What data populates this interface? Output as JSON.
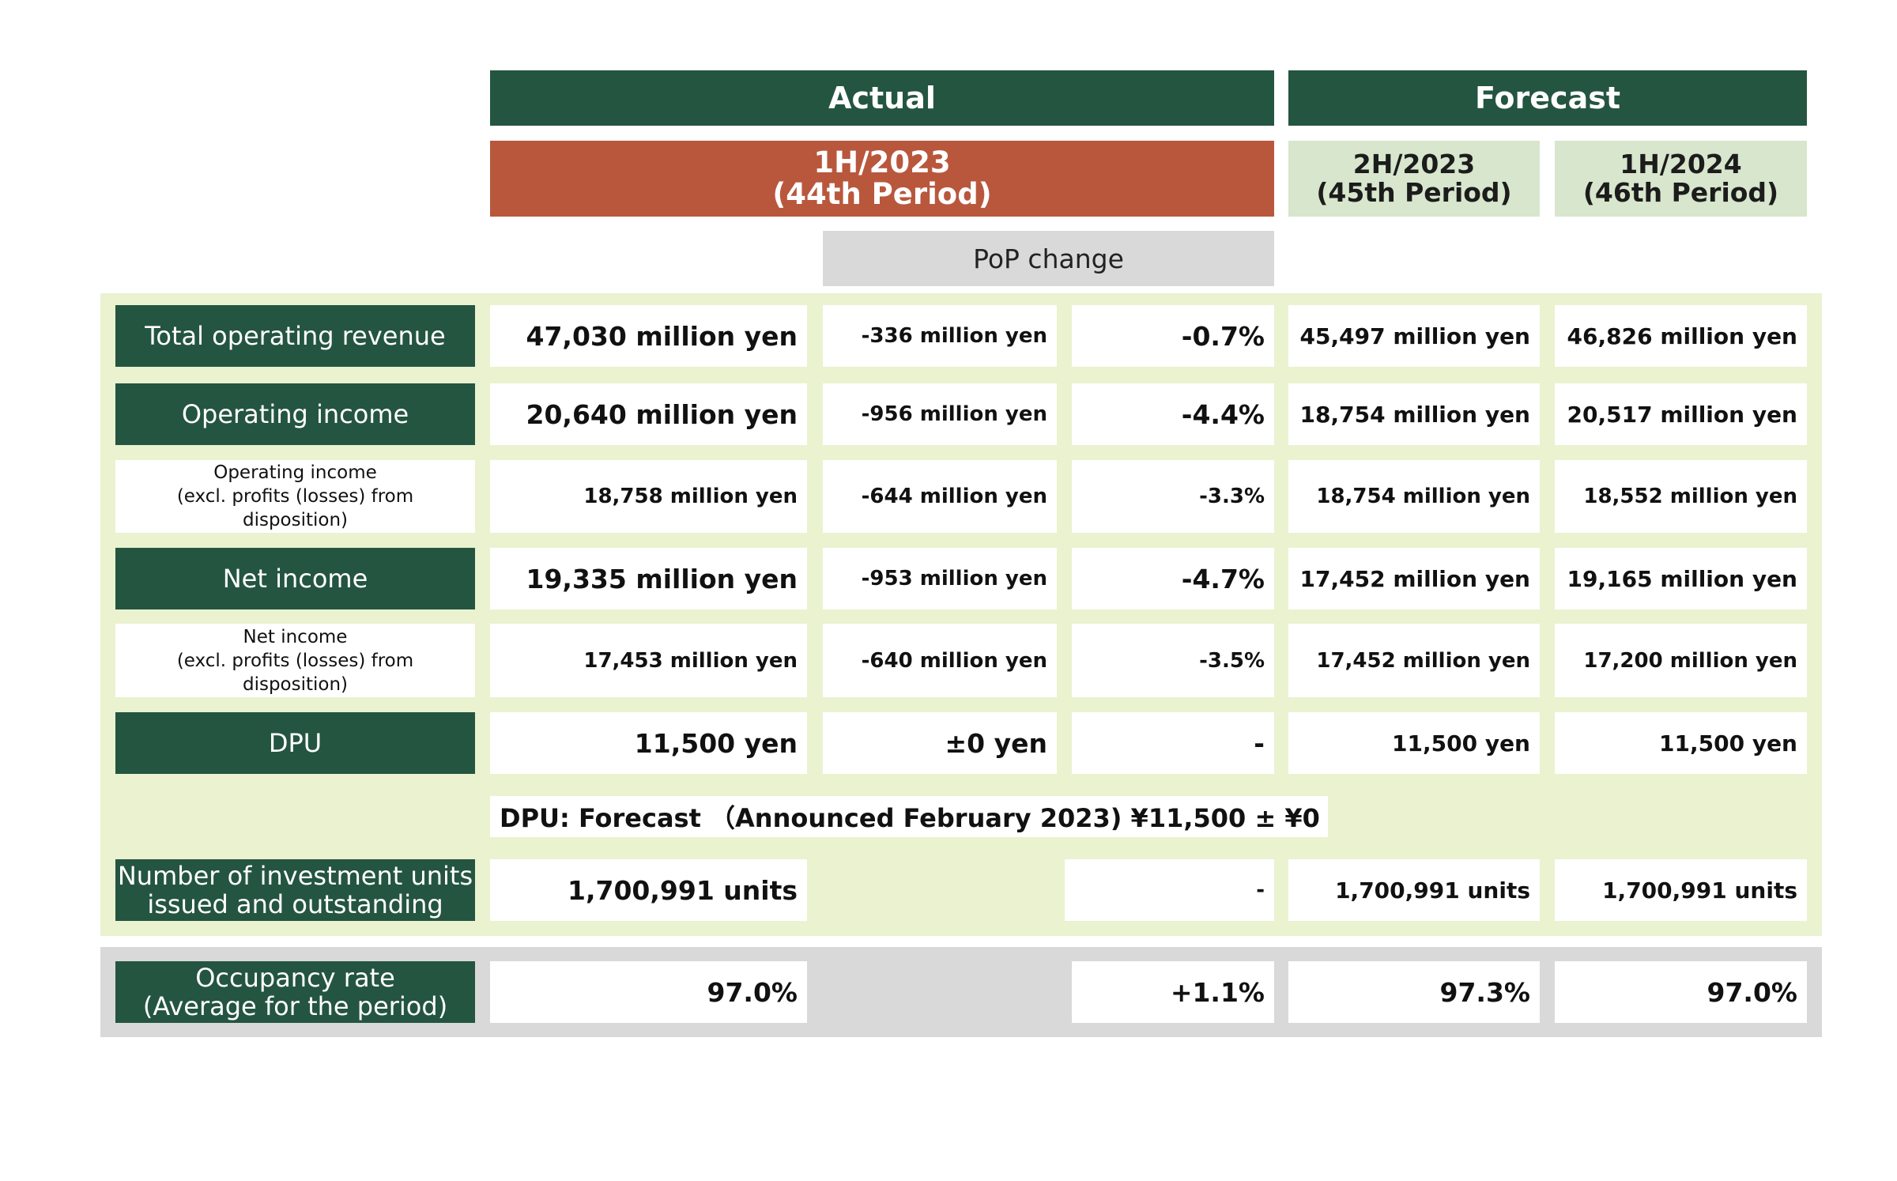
{
  "header": {
    "actual": "Actual",
    "forecast": "Forecast",
    "period_actual": [
      "1H/2023",
      "(44th Period)"
    ],
    "period_f1": [
      "2H/2023",
      "(45th Period)"
    ],
    "period_f2": [
      "1H/2024",
      "(46th Period)"
    ],
    "pop_change": "PoP change"
  },
  "rows": {
    "total_operating_revenue": {
      "label": "Total operating revenue",
      "actual": "47,030 million yen",
      "change": "-336 million yen",
      "pct": "-0.7%",
      "f1": "45,497 million yen",
      "f2": "46,826 million yen"
    },
    "operating_income": {
      "label": "Operating income",
      "actual": "20,640 million yen",
      "change": "-956 million yen",
      "pct": "-4.4%",
      "f1": "18,754 million yen",
      "f2": "20,517 million yen"
    },
    "operating_income_excl": {
      "label": [
        "Operating income",
        "(excl. profits (losses) from",
        "disposition)"
      ],
      "actual": "18,758 million yen",
      "change": "-644 million yen",
      "pct": "-3.3%",
      "f1": "18,754 million yen",
      "f2": "18,552 million yen"
    },
    "net_income": {
      "label": "Net income",
      "actual": "19,335 million yen",
      "change": "-953 million yen",
      "pct": "-4.7%",
      "f1": "17,452 million yen",
      "f2": "19,165 million yen"
    },
    "net_income_excl": {
      "label": [
        "Net income",
        "(excl. profits (losses) from",
        "disposition)"
      ],
      "actual": "17,453 million yen",
      "change": "-640 million yen",
      "pct": "-3.5%",
      "f1": "17,452 million yen",
      "f2": "17,200 million yen"
    },
    "dpu": {
      "label": "DPU",
      "actual": "11,500 yen",
      "change": "±0 yen",
      "pct": "-",
      "f1": "11,500 yen",
      "f2": "11,500 yen"
    },
    "units": {
      "label": [
        "Number of investment units",
        "issued and outstanding"
      ],
      "actual": "1,700,991 units",
      "pct": "-",
      "f1": "1,700,991 units",
      "f2": "1,700,991 units"
    },
    "occupancy": {
      "label": [
        "Occupancy rate",
        "(Average for the period)"
      ],
      "actual": "97.0%",
      "pct": "+1.1%",
      "f1": "97.3%",
      "f2": "97.0%"
    }
  },
  "dpu_note": "DPU: Forecast （Announced February 2023) ¥11,500 ± ¥0"
}
